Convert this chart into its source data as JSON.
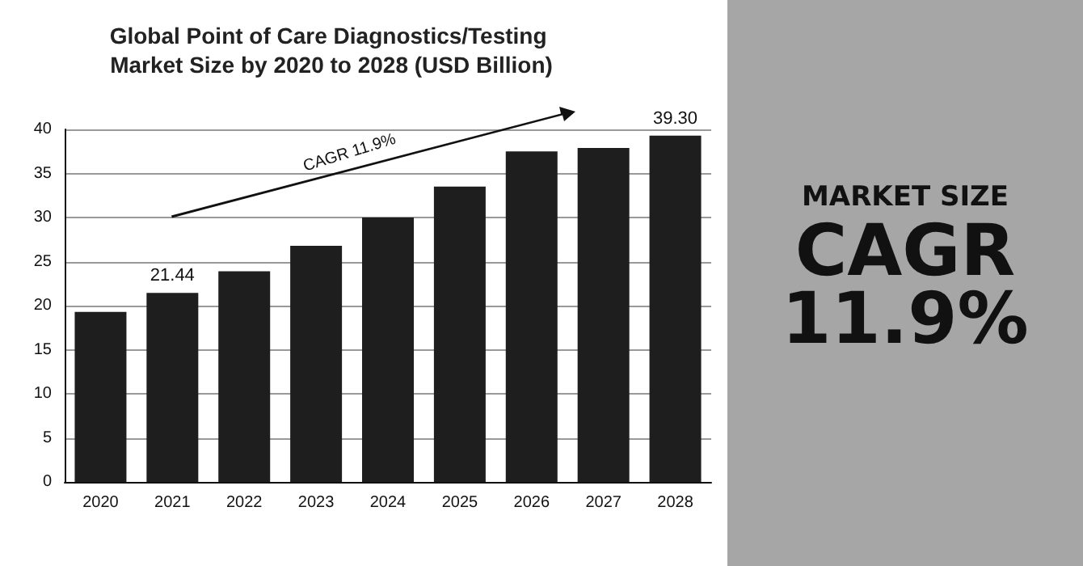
{
  "chart_data": {
    "type": "bar",
    "title": "Global Point of Care Diagnostics/Testing Market Size by 2020 to 2028 (USD Billion)",
    "categories": [
      "2020",
      "2021",
      "2022",
      "2023",
      "2024",
      "2025",
      "2026",
      "2027",
      "2028"
    ],
    "values": [
      19.3,
      21.44,
      23.9,
      26.8,
      30.0,
      33.5,
      37.5,
      37.9,
      39.3
    ],
    "value_labels": [
      null,
      "21.44",
      null,
      null,
      null,
      null,
      null,
      null,
      "39.30"
    ],
    "color": "#1e1e1e",
    "ylim": [
      0,
      40
    ],
    "yticks": [
      0,
      5,
      10,
      15,
      20,
      25,
      30,
      35,
      40
    ],
    "grid": "y",
    "annotations": [
      "CAGR 11.9%",
      "MARKET SIZE",
      "CAGR",
      "11.9%"
    ]
  }
}
